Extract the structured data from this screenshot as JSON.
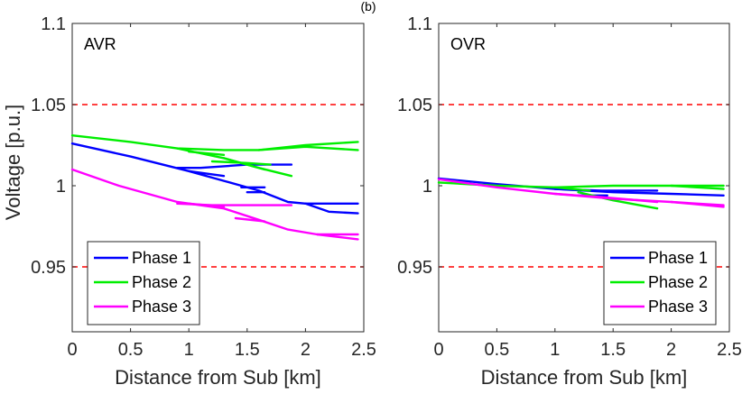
{
  "figure": {
    "subfig_label": "(b)",
    "ylabel": "Voltage [p.u.]"
  },
  "chart_data": [
    {
      "type": "line",
      "panel_label": "AVR",
      "xlabel": "Distance from Sub [km]",
      "ylabel": "Voltage [p.u.]",
      "xlim": [
        0,
        2.5
      ],
      "ylim": [
        0.91,
        1.1
      ],
      "xticks": [
        "0",
        "0.5",
        "1",
        "1.5",
        "2",
        "2.5"
      ],
      "yticks": [
        "0.95",
        "1",
        "1.05",
        "1.1"
      ],
      "ytick_values": [
        0.95,
        1.0,
        1.05,
        1.1
      ],
      "legend_position": "bottom-left",
      "reference_lines": {
        "values": [
          1.05,
          0.95
        ],
        "color": "#ff0000",
        "style": "dashed"
      },
      "series": [
        {
          "name": "Phase 1",
          "color": "#0000ff",
          "segments": [
            {
              "x": [
                0,
                0.5,
                1.0,
                1.3,
                1.6,
                1.85,
                2.0,
                2.45
              ],
              "y": [
                1.026,
                1.018,
                1.009,
                1.003,
                0.997,
                0.99,
                0.989,
                0.989
              ]
            },
            {
              "x": [
                2.0,
                2.2,
                2.45
              ],
              "y": [
                0.989,
                0.984,
                0.983
              ]
            },
            {
              "x": [
                0.9,
                1.1,
                1.3,
                1.5,
                1.7,
                1.88
              ],
              "y": [
                1.011,
                1.011,
                1.012,
                1.013,
                1.013,
                1.013
              ]
            },
            {
              "x": [
                1.0,
                1.3
              ],
              "y": [
                1.009,
                1.006
              ]
            },
            {
              "x": [
                1.45,
                1.65
              ],
              "y": [
                0.999,
                0.999
              ]
            },
            {
              "x": [
                1.5,
                1.65
              ],
              "y": [
                0.996,
                0.996
              ]
            }
          ]
        },
        {
          "name": "Phase 2",
          "color": "#00ee00",
          "segments": [
            {
              "x": [
                0,
                0.5,
                0.9,
                1.3,
                1.6,
                2.0,
                2.45
              ],
              "y": [
                1.031,
                1.027,
                1.023,
                1.022,
                1.022,
                1.025,
                1.027
              ]
            },
            {
              "x": [
                1.6,
                2.0,
                2.45
              ],
              "y": [
                1.022,
                1.024,
                1.022
              ]
            },
            {
              "x": [
                0.9,
                1.1,
                1.3,
                1.5,
                1.65
              ],
              "y": [
                1.023,
                1.02,
                1.017,
                1.013,
                1.01
              ]
            },
            {
              "x": [
                1.3,
                1.6,
                1.88
              ],
              "y": [
                1.017,
                1.011,
                1.006
              ]
            },
            {
              "x": [
                1.0,
                1.3
              ],
              "y": [
                1.021,
                1.019
              ]
            },
            {
              "x": [
                1.2,
                1.5,
                1.7
              ],
              "y": [
                1.015,
                1.014,
                1.013
              ]
            }
          ]
        },
        {
          "name": "Phase 3",
          "color": "#ff00ff",
          "segments": [
            {
              "x": [
                0,
                0.4,
                0.9,
                1.3,
                1.6,
                1.85,
                2.1,
                2.45
              ],
              "y": [
                1.01,
                1.0,
                0.99,
                0.986,
                0.979,
                0.973,
                0.97,
                0.967
              ]
            },
            {
              "x": [
                2.1,
                2.45
              ],
              "y": [
                0.97,
                0.97
              ]
            },
            {
              "x": [
                0.9,
                1.2,
                1.5,
                1.88
              ],
              "y": [
                0.989,
                0.988,
                0.988,
                0.988
              ]
            },
            {
              "x": [
                1.0,
                1.3
              ],
              "y": [
                0.989,
                0.987
              ]
            },
            {
              "x": [
                1.4,
                1.65
              ],
              "y": [
                0.98,
                0.978
              ]
            }
          ]
        }
      ]
    },
    {
      "type": "line",
      "panel_label": "OVR",
      "xlabel": "Distance from Sub [km]",
      "ylabel": "",
      "xlim": [
        0,
        2.5
      ],
      "ylim": [
        0.91,
        1.1
      ],
      "xticks": [
        "0",
        "0.5",
        "1",
        "1.5",
        "2",
        "2.5"
      ],
      "yticks": [
        "0.95",
        "1",
        "1.05",
        "1.1"
      ],
      "ytick_values": [
        0.95,
        1.0,
        1.05,
        1.1
      ],
      "legend_position": "bottom-right",
      "reference_lines": {
        "values": [
          1.05,
          0.95
        ],
        "color": "#ff0000",
        "style": "dashed"
      },
      "series": [
        {
          "name": "Phase 1",
          "color": "#0000ff",
          "segments": [
            {
              "x": [
                0,
                0.5,
                1.0,
                1.5,
                2.0,
                2.45
              ],
              "y": [
                1.0045,
                1.001,
                0.998,
                0.996,
                0.995,
                0.994
              ]
            },
            {
              "x": [
                1.0,
                1.4,
                1.88
              ],
              "y": [
                0.998,
                0.997,
                0.997
              ]
            },
            {
              "x": [
                1.2,
                1.45
              ],
              "y": [
                0.994,
                0.994
              ]
            }
          ]
        },
        {
          "name": "Phase 2",
          "color": "#00ee00",
          "segments": [
            {
              "x": [
                0,
                0.5,
                1.0,
                1.5,
                2.0,
                2.45
              ],
              "y": [
                1.002,
                1.0,
                0.999,
                1.0,
                1.0,
                1.0
              ]
            },
            {
              "x": [
                1.2,
                1.5,
                1.88
              ],
              "y": [
                0.996,
                0.991,
                0.986
              ]
            },
            {
              "x": [
                2.0,
                2.45
              ],
              "y": [
                1.0,
                0.998
              ]
            },
            {
              "x": [
                1.0,
                1.3
              ],
              "y": [
                0.999,
                0.997
              ]
            }
          ]
        },
        {
          "name": "Phase 3",
          "color": "#ff00ff",
          "segments": [
            {
              "x": [
                0,
                0.5,
                1.0,
                1.5,
                2.0,
                2.45
              ],
              "y": [
                1.004,
                0.999,
                0.995,
                0.992,
                0.99,
                0.988
              ]
            },
            {
              "x": [
                1.0,
                1.4,
                1.88
              ],
              "y": [
                0.995,
                0.993,
                0.99
              ]
            },
            {
              "x": [
                2.0,
                2.45
              ],
              "y": [
                0.99,
                0.987
              ]
            }
          ]
        }
      ]
    }
  ]
}
